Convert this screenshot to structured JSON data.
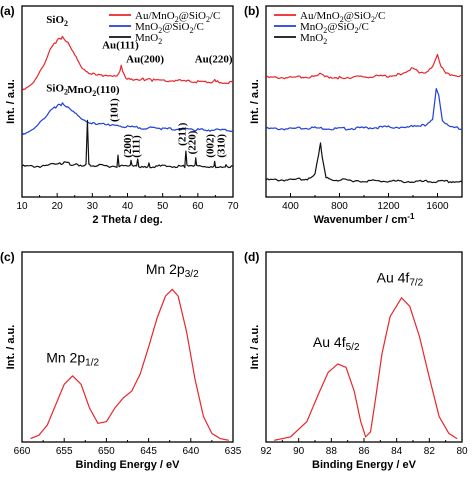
{
  "chart_data": [
    {
      "id": "a",
      "type": "line",
      "panel_label": "(a)",
      "xlabel": "2 Theta / deg.",
      "ylabel": "Int. / a.u.",
      "xlim": [
        10,
        70
      ],
      "xticks": [
        10,
        20,
        30,
        40,
        50,
        60,
        70
      ],
      "yticks_shown": false,
      "legend": {
        "placement": "top-right",
        "entries": [
          {
            "parts": [
              "Au/MnO",
              "2",
              "@SiO",
              "2",
              "/C"
            ],
            "color": "#e8262b"
          },
          {
            "parts": [
              "MnO",
              "2",
              "@SiO",
              "2",
              "/C"
            ],
            "color": "#1f3fd8"
          },
          {
            "parts": [
              "MnO",
              "2"
            ],
            "color": "#111111"
          }
        ]
      },
      "series": [
        {
          "color": "#e8262b",
          "points": [
            [
              10,
              0.62
            ],
            [
              13,
              0.66
            ],
            [
              16,
              0.76
            ],
            [
              18,
              0.86
            ],
            [
              20,
              0.92
            ],
            [
              21.5,
              0.935
            ],
            [
              23,
              0.91
            ],
            [
              25,
              0.84
            ],
            [
              27,
              0.76
            ],
            [
              29,
              0.73
            ],
            [
              31,
              0.72
            ],
            [
              33,
              0.71
            ],
            [
              35,
              0.705
            ],
            [
              37,
              0.705
            ],
            [
              37.8,
              0.73
            ],
            [
              38.2,
              0.77
            ],
            [
              38.6,
              0.73
            ],
            [
              39.5,
              0.7
            ],
            [
              42,
              0.69
            ],
            [
              44,
              0.69
            ],
            [
              44.4,
              0.705
            ],
            [
              44.8,
              0.69
            ],
            [
              47,
              0.685
            ],
            [
              55,
              0.68
            ],
            [
              60,
              0.675
            ],
            [
              64.4,
              0.675
            ],
            [
              64.8,
              0.685
            ],
            [
              65.2,
              0.675
            ],
            [
              70,
              0.67
            ]
          ]
        },
        {
          "color": "#1f3fd8",
          "points": [
            [
              10,
              0.36
            ],
            [
              13,
              0.39
            ],
            [
              16,
              0.45
            ],
            [
              18,
              0.5
            ],
            [
              20,
              0.535
            ],
            [
              21.5,
              0.545
            ],
            [
              23,
              0.53
            ],
            [
              25,
              0.5
            ],
            [
              27,
              0.46
            ],
            [
              29,
              0.44
            ],
            [
              31,
              0.43
            ],
            [
              35,
              0.42
            ],
            [
              40,
              0.41
            ],
            [
              50,
              0.4
            ],
            [
              60,
              0.395
            ],
            [
              70,
              0.39
            ]
          ]
        },
        {
          "color": "#111111",
          "points": [
            [
              10,
              0.18
            ],
            [
              16,
              0.18
            ],
            [
              19,
              0.19
            ],
            [
              22,
              0.2
            ],
            [
              25,
              0.19
            ],
            [
              28.2,
              0.185
            ],
            [
              28.6,
              0.45
            ],
            [
              29.0,
              0.2
            ],
            [
              29.5,
              0.185
            ],
            [
              37.0,
              0.18
            ],
            [
              37.3,
              0.25
            ],
            [
              37.6,
              0.18
            ],
            [
              40.8,
              0.18
            ],
            [
              41.0,
              0.21
            ],
            [
              41.3,
              0.18
            ],
            [
              42.6,
              0.18
            ],
            [
              42.9,
              0.215
            ],
            [
              43.2,
              0.18
            ],
            [
              45.8,
              0.18
            ],
            [
              46.1,
              0.2
            ],
            [
              46.4,
              0.18
            ],
            [
              56.3,
              0.18
            ],
            [
              56.6,
              0.275
            ],
            [
              56.9,
              0.18
            ],
            [
              59.2,
              0.18
            ],
            [
              59.4,
              0.225
            ],
            [
              59.7,
              0.18
            ],
            [
              64.6,
              0.18
            ],
            [
              64.8,
              0.205
            ],
            [
              65.1,
              0.18
            ],
            [
              67.8,
              0.18
            ],
            [
              68.0,
              0.195
            ],
            [
              68.3,
              0.18
            ],
            [
              70,
              0.18
            ]
          ]
        }
      ],
      "annotations": [
        {
          "parts": [
            "SiO",
            "2"
          ],
          "x": 20,
          "y": 1.02
        },
        {
          "parts": [
            "Au(111)"
          ],
          "x": 38,
          "y": 0.87
        },
        {
          "parts": [
            "Au(200)"
          ],
          "x": 45,
          "y": 0.79
        },
        {
          "parts": [
            "Au(220)"
          ],
          "x": 64.5,
          "y": 0.79
        },
        {
          "parts": [
            "SiO",
            "2"
          ],
          "x": 20,
          "y": 0.62
        },
        {
          "parts": [
            "MnO",
            "2",
            "(110)"
          ],
          "x": 30.3,
          "y": 0.61
        },
        {
          "parts": [
            "(101)"
          ],
          "x": 37.2,
          "y": 0.44,
          "rotate": true
        },
        {
          "parts": [
            "(200)"
          ],
          "x": 41.0,
          "y": 0.23,
          "rotate": true
        },
        {
          "parts": [
            "(111)"
          ],
          "x": 43.4,
          "y": 0.23,
          "rotate": true
        },
        {
          "parts": [
            "(211)"
          ],
          "x": 56.5,
          "y": 0.3,
          "rotate": true
        },
        {
          "parts": [
            "(220)"
          ],
          "x": 59.4,
          "y": 0.25,
          "rotate": true
        },
        {
          "parts": [
            "(002)"
          ],
          "x": 64.5,
          "y": 0.23,
          "rotate": true
        },
        {
          "parts": [
            "(310)"
          ],
          "x": 67.6,
          "y": 0.23,
          "rotate": true
        }
      ]
    },
    {
      "id": "b",
      "type": "line",
      "panel_label": "(b)",
      "xlabel": "Wavenumber / cm",
      "xlabel_sup": "-1",
      "ylabel": "Int. / a.u.",
      "xlim": [
        200,
        1800
      ],
      "xticks": [
        400,
        800,
        1200,
        1600
      ],
      "yticks_shown": false,
      "legend": {
        "placement": "top-left",
        "entries": [
          {
            "parts": [
              "Au/MnO",
              "2",
              "@SiO",
              "2",
              "/C"
            ],
            "color": "#e8262b"
          },
          {
            "parts": [
              "MnO",
              "2",
              "@SiO",
              "2",
              "/C"
            ],
            "color": "#1f3fd8"
          },
          {
            "parts": [
              "MnO",
              "2"
            ],
            "color": "#111111"
          }
        ]
      },
      "series": [
        {
          "color": "#e8262b",
          "points": [
            [
              200,
              0.7
            ],
            [
              400,
              0.7
            ],
            [
              600,
              0.705
            ],
            [
              640,
              0.72
            ],
            [
              680,
              0.705
            ],
            [
              800,
              0.7
            ],
            [
              1000,
              0.705
            ],
            [
              1200,
              0.71
            ],
            [
              1300,
              0.72
            ],
            [
              1350,
              0.74
            ],
            [
              1400,
              0.76
            ],
            [
              1450,
              0.73
            ],
            [
              1500,
              0.72
            ],
            [
              1560,
              0.76
            ],
            [
              1600,
              0.83
            ],
            [
              1630,
              0.76
            ],
            [
              1680,
              0.72
            ],
            [
              1800,
              0.71
            ]
          ]
        },
        {
          "color": "#1f3fd8",
          "points": [
            [
              200,
              0.4
            ],
            [
              400,
              0.4
            ],
            [
              600,
              0.405
            ],
            [
              800,
              0.4
            ],
            [
              1000,
              0.405
            ],
            [
              1200,
              0.41
            ],
            [
              1300,
              0.41
            ],
            [
              1400,
              0.42
            ],
            [
              1500,
              0.42
            ],
            [
              1560,
              0.46
            ],
            [
              1590,
              0.64
            ],
            [
              1610,
              0.6
            ],
            [
              1640,
              0.44
            ],
            [
              1700,
              0.41
            ],
            [
              1800,
              0.4
            ]
          ]
        },
        {
          "color": "#111111",
          "points": [
            [
              200,
              0.1
            ],
            [
              400,
              0.1
            ],
            [
              550,
              0.105
            ],
            [
              600,
              0.13
            ],
            [
              630,
              0.25
            ],
            [
              645,
              0.31
            ],
            [
              660,
              0.23
            ],
            [
              690,
              0.12
            ],
            [
              750,
              0.1
            ],
            [
              1000,
              0.095
            ],
            [
              1400,
              0.09
            ],
            [
              1800,
              0.09
            ]
          ]
        }
      ]
    },
    {
      "id": "c",
      "type": "line",
      "panel_label": "(c)",
      "xlabel": "Binding Energy / eV",
      "ylabel": "Int. / a.u.",
      "xlim": [
        660,
        635
      ],
      "xticks": [
        660,
        655,
        650,
        645,
        640,
        635
      ],
      "x_reversed": true,
      "ylim": [
        0,
        1
      ],
      "yticks_shown": false,
      "series": [
        {
          "color": "#e8262b",
          "points": [
            [
              659,
              0.02
            ],
            [
              658,
              0.04
            ],
            [
              657,
              0.1
            ],
            [
              656,
              0.22
            ],
            [
              655,
              0.34
            ],
            [
              654,
              0.39
            ],
            [
              653,
              0.34
            ],
            [
              652,
              0.2
            ],
            [
              651,
              0.11
            ],
            [
              650,
              0.12
            ],
            [
              649,
              0.2
            ],
            [
              648,
              0.26
            ],
            [
              647,
              0.3
            ],
            [
              646,
              0.4
            ],
            [
              645,
              0.56
            ],
            [
              644,
              0.73
            ],
            [
              643,
              0.86
            ],
            [
              642.2,
              0.9
            ],
            [
              641.5,
              0.86
            ],
            [
              640.5,
              0.65
            ],
            [
              639.5,
              0.37
            ],
            [
              638.5,
              0.15
            ],
            [
              637.5,
              0.05
            ],
            [
              636.5,
              0.02
            ],
            [
              635.5,
              0.01
            ]
          ]
        }
      ],
      "annotations": [
        {
          "parts": [
            "Mn 2p",
            "1/2"
          ],
          "x": 654,
          "y": 0.47
        },
        {
          "parts": [
            "Mn 2p",
            "3/2"
          ],
          "x": 642.2,
          "y": 0.99
        }
      ]
    },
    {
      "id": "d",
      "type": "line",
      "panel_label": "(d)",
      "xlabel": "Binding Energy / eV",
      "ylabel": "Int. / a.u.",
      "xlim": [
        92,
        80
      ],
      "xticks": [
        92,
        90,
        88,
        86,
        84,
        82,
        80
      ],
      "x_reversed": true,
      "ylim": [
        0,
        1
      ],
      "yticks_shown": false,
      "series": [
        {
          "color": "#e8262b",
          "points": [
            [
              91.5,
              0.01
            ],
            [
              90.5,
              0.03
            ],
            [
              89.5,
              0.12
            ],
            [
              88.8,
              0.28
            ],
            [
              88.2,
              0.41
            ],
            [
              87.6,
              0.46
            ],
            [
              87.1,
              0.44
            ],
            [
              86.6,
              0.3
            ],
            [
              86.2,
              0.12
            ],
            [
              85.9,
              0.03
            ],
            [
              85.6,
              0.06
            ],
            [
              85.3,
              0.25
            ],
            [
              84.9,
              0.52
            ],
            [
              84.4,
              0.74
            ],
            [
              83.7,
              0.85
            ],
            [
              83.2,
              0.8
            ],
            [
              82.6,
              0.62
            ],
            [
              82.0,
              0.38
            ],
            [
              81.4,
              0.15
            ],
            [
              80.8,
              0.05
            ],
            [
              80.3,
              0.02
            ]
          ]
        }
      ],
      "annotations": [
        {
          "parts": [
            "Au 4f",
            "5/2"
          ],
          "x": 87.7,
          "y": 0.56
        },
        {
          "parts": [
            "Au 4f",
            "7/2"
          ],
          "x": 83.8,
          "y": 0.94
        }
      ]
    }
  ]
}
